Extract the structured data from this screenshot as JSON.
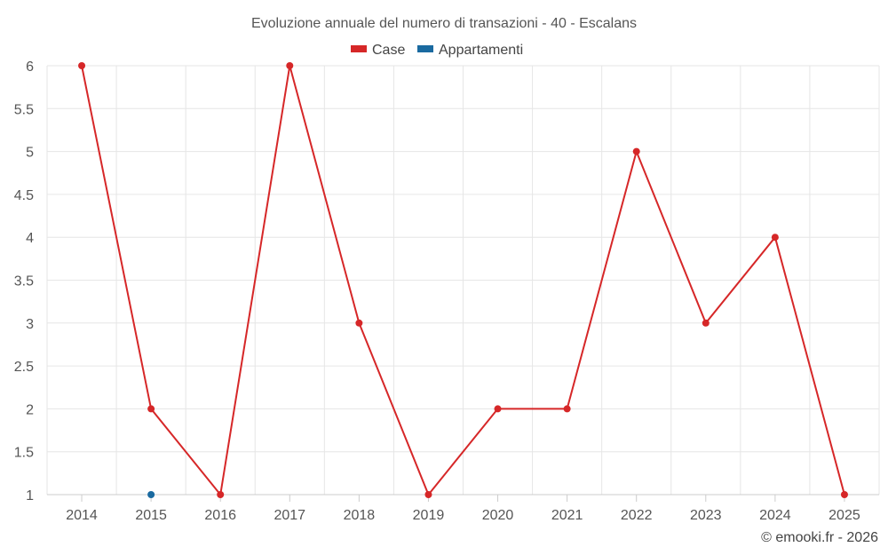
{
  "chart_data": {
    "type": "line",
    "title": "Evoluzione annuale del numero di transazioni - 40 - Escalans",
    "categories": [
      "2014",
      "2015",
      "2016",
      "2017",
      "2018",
      "2019",
      "2020",
      "2021",
      "2022",
      "2023",
      "2024",
      "2025"
    ],
    "series": [
      {
        "name": "Case",
        "color": "#d62728",
        "values": [
          6,
          2,
          1,
          6,
          3,
          1,
          2,
          2,
          5,
          3,
          4,
          1
        ]
      },
      {
        "name": "Appartamenti",
        "color": "#1a6aa0",
        "values": [
          null,
          1,
          null,
          null,
          null,
          null,
          null,
          null,
          null,
          null,
          null,
          null
        ]
      }
    ],
    "yticks": [
      "1",
      "1.5",
      "2",
      "2.5",
      "3",
      "3.5",
      "4",
      "4.5",
      "5",
      "5.5",
      "6"
    ],
    "ylim": [
      1,
      6
    ],
    "grid": true,
    "legend": "top-center"
  },
  "credit": "© emooki.fr - 2026"
}
